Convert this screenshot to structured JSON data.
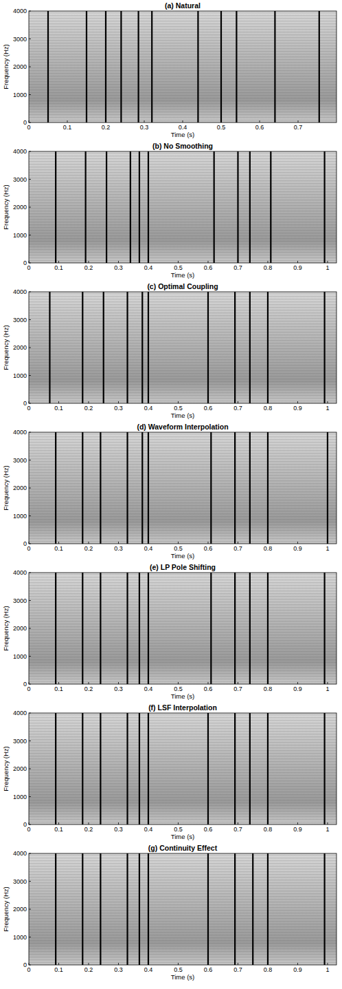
{
  "chart_data": [
    {
      "type": "spectrogram",
      "title": "(a) Natural",
      "xlabel": "Time (s)",
      "ylabel": "Frequency (Hz)",
      "xlim": [
        0,
        0.8
      ],
      "xticks": [
        0,
        0.1,
        0.2,
        0.3,
        0.4,
        0.5,
        0.6,
        0.7
      ],
      "ylim": [
        0,
        4000
      ],
      "yticks": [
        0,
        1000,
        2000,
        3000,
        4000
      ],
      "boundaries": [
        0.05,
        0.15,
        0.2,
        0.24,
        0.285,
        0.32,
        0.44,
        0.5,
        0.54,
        0.64,
        0.755
      ]
    },
    {
      "type": "spectrogram",
      "title": "(b) No Smoothing",
      "xlabel": "Time (s)",
      "ylabel": "Frequency (Hz)",
      "xlim": [
        0,
        1.03
      ],
      "xticks": [
        0,
        0.1,
        0.2,
        0.3,
        0.4,
        0.5,
        0.6,
        0.7,
        0.8,
        0.9,
        1
      ],
      "ylim": [
        0,
        4000
      ],
      "yticks": [
        0,
        1000,
        2000,
        3000,
        4000
      ],
      "boundaries": [
        0.09,
        0.19,
        0.26,
        0.34,
        0.37,
        0.4,
        0.62,
        0.7,
        0.74,
        0.81,
        0.99
      ]
    },
    {
      "type": "spectrogram",
      "title": "(c) Optimal Coupling",
      "xlabel": "Time (s)",
      "ylabel": "Frequency (Hz)",
      "xlim": [
        0,
        1.03
      ],
      "xticks": [
        0,
        0.1,
        0.2,
        0.3,
        0.4,
        0.5,
        0.6,
        0.7,
        0.8,
        0.9,
        1
      ],
      "ylim": [
        0,
        4000
      ],
      "yticks": [
        0,
        1000,
        2000,
        3000,
        4000
      ],
      "boundaries": [
        0.07,
        0.18,
        0.25,
        0.33,
        0.38,
        0.4,
        0.6,
        0.69,
        0.74,
        0.8,
        0.99
      ]
    },
    {
      "type": "spectrogram",
      "title": "(d) Waveform Interpolation",
      "xlabel": "Time (s)",
      "ylabel": "Frequency (Hz)",
      "xlim": [
        0,
        1.03
      ],
      "xticks": [
        0,
        0.1,
        0.2,
        0.3,
        0.4,
        0.5,
        0.6,
        0.7,
        0.8,
        0.9,
        1
      ],
      "ylim": [
        0,
        4000
      ],
      "yticks": [
        0,
        1000,
        2000,
        3000,
        4000
      ],
      "boundaries": [
        0.09,
        0.18,
        0.24,
        0.33,
        0.38,
        0.4,
        0.61,
        0.69,
        0.74,
        0.8,
        1.0
      ]
    },
    {
      "type": "spectrogram",
      "title": "(e) LP Pole Shifting",
      "xlabel": "Time (s)",
      "ylabel": "Frequency (Hz)",
      "xlim": [
        0,
        1.03
      ],
      "xticks": [
        0,
        0.1,
        0.2,
        0.3,
        0.4,
        0.5,
        0.6,
        0.7,
        0.8,
        0.9,
        1
      ],
      "ylim": [
        0,
        4000
      ],
      "yticks": [
        0,
        1000,
        2000,
        3000,
        4000
      ],
      "boundaries": [
        0.09,
        0.18,
        0.24,
        0.33,
        0.37,
        0.4,
        0.61,
        0.69,
        0.74,
        0.8,
        0.99
      ]
    },
    {
      "type": "spectrogram",
      "title": "(f) LSF Interpolation",
      "xlabel": "Time (s)",
      "ylabel": "Frequency (Hz)",
      "xlim": [
        0,
        1.03
      ],
      "xticks": [
        0,
        0.1,
        0.2,
        0.3,
        0.4,
        0.5,
        0.6,
        0.7,
        0.8,
        0.9,
        1
      ],
      "ylim": [
        0,
        4000
      ],
      "yticks": [
        0,
        1000,
        2000,
        3000,
        4000
      ],
      "boundaries": [
        0.09,
        0.18,
        0.24,
        0.33,
        0.37,
        0.4,
        0.6,
        0.69,
        0.74,
        0.8,
        0.99
      ]
    },
    {
      "type": "spectrogram",
      "title": "(g) Continuity Effect",
      "xlabel": "Time (s)",
      "ylabel": "Frequency (Hz)",
      "xlim": [
        0,
        1.03
      ],
      "xticks": [
        0,
        0.1,
        0.2,
        0.3,
        0.4,
        0.5,
        0.6,
        0.7,
        0.8,
        0.9,
        1
      ],
      "ylim": [
        0,
        4000
      ],
      "yticks": [
        0,
        1000,
        2000,
        3000,
        4000
      ],
      "boundaries": [
        0.09,
        0.18,
        0.24,
        0.33,
        0.37,
        0.4,
        0.6,
        0.69,
        0.75,
        0.8,
        0.99
      ]
    }
  ]
}
